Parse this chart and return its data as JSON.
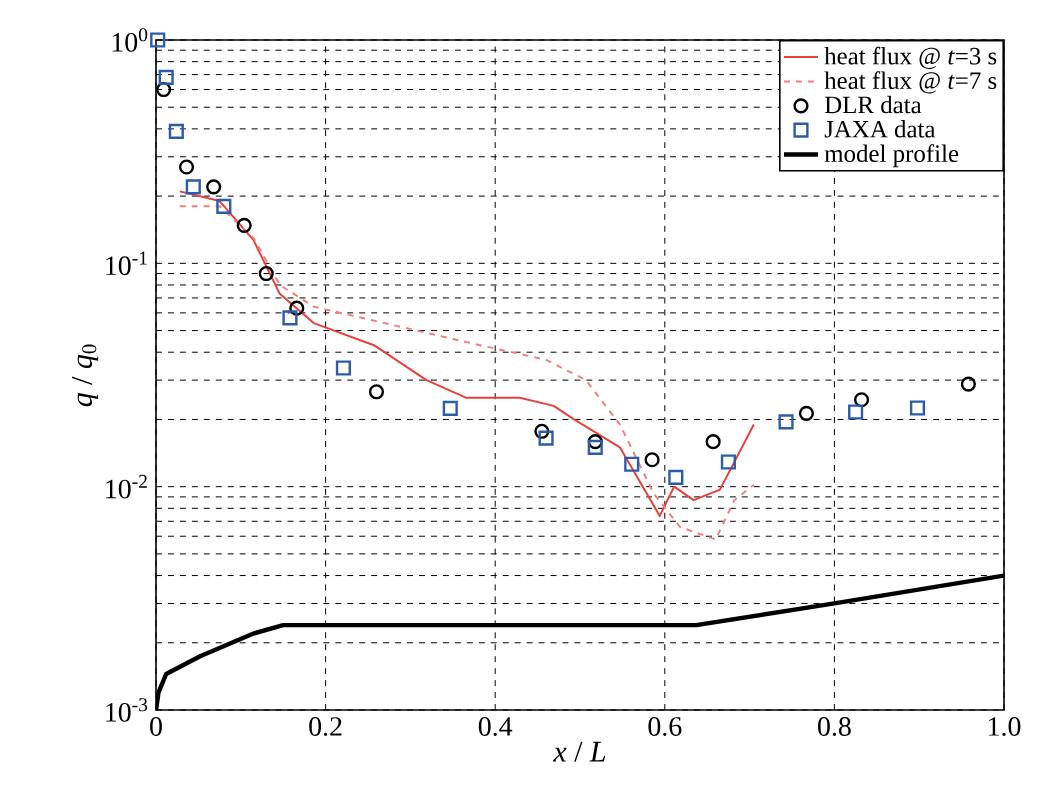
{
  "chart_data": {
    "type": "line",
    "xlabel": "*x* / *L*",
    "ylabel": "*q* / *q*$_{0}$",
    "xlim": [
      0,
      1
    ],
    "ylim": [
      0.001,
      1
    ],
    "log": "y",
    "grid": true,
    "legend": "top right",
    "xticks": [
      0,
      0.2,
      0.4,
      0.6,
      0.8,
      {
        "value": 1,
        "label": "1.0"
      }
    ],
    "yticks": [
      {
        "value": 0.001,
        "label": "10$^{-3}$"
      },
      {
        "value": 0.01,
        "label": "10$^{-2}$"
      },
      {
        "value": 0.1,
        "label": "10$^{-1}$"
      },
      {
        "value": 1,
        "label": "10$^{0}$"
      }
    ],
    "series": [
      {
        "name": "heat flux @ *t*=3 s",
        "line_style": "solid",
        "marker": "none",
        "color": "#e8413c",
        "x": [
          0.028,
          0.075,
          0.115,
          0.146,
          0.186,
          0.257,
          0.319,
          0.366,
          0.429,
          0.469,
          0.493,
          0.547,
          0.594,
          0.611,
          0.634,
          0.665,
          0.705
        ],
        "values": [
          0.21,
          0.19,
          0.127,
          0.073,
          0.054,
          0.043,
          0.03,
          0.025,
          0.025,
          0.023,
          0.02,
          0.015,
          0.0074,
          0.01,
          0.0087,
          0.0097,
          0.019
        ]
      },
      {
        "name": "heat flux @ *t*=7 s",
        "line_style": "dashed",
        "marker": "none",
        "color": "#f08080",
        "x": [
          0.028,
          0.075,
          0.115,
          0.146,
          0.186,
          0.288,
          0.382,
          0.46,
          0.507,
          0.547,
          0.587,
          0.618,
          0.66,
          0.682,
          0.705
        ],
        "values": [
          0.18,
          0.18,
          0.13,
          0.08,
          0.064,
          0.052,
          0.043,
          0.037,
          0.03,
          0.019,
          0.0093,
          0.0066,
          0.0058,
          0.0087,
          0.0102
        ]
      },
      {
        "name": "DLR data",
        "type": "scatter",
        "marker": "circle",
        "color": "#000000",
        "x": [
          0.009,
          0.036,
          0.068,
          0.104,
          0.13,
          0.166,
          0.26,
          0.455,
          0.518,
          0.585,
          0.657,
          0.767,
          0.832,
          0.958
        ],
        "values": [
          0.6,
          0.27,
          0.22,
          0.148,
          0.09,
          0.063,
          0.0266,
          0.0177,
          0.0159,
          0.0132,
          0.0159,
          0.0213,
          0.0245,
          0.0288
        ]
      },
      {
        "name": "JAXA data",
        "type": "scatter",
        "marker": "square",
        "color": "#2a5caa",
        "x": [
          0.002,
          0.012,
          0.024,
          0.044,
          0.08,
          0.158,
          0.221,
          0.347,
          0.46,
          0.518,
          0.561,
          0.613,
          0.675,
          0.743,
          0.825,
          0.898
        ],
        "values": [
          1.0,
          0.68,
          0.39,
          0.22,
          0.18,
          0.057,
          0.034,
          0.0224,
          0.0165,
          0.015,
          0.0126,
          0.011,
          0.0129,
          0.0195,
          0.0216,
          0.0225
        ]
      },
      {
        "name": "model profile",
        "line_style": "solid",
        "marker": "none",
        "color": "#000000",
        "x": [
          0.0,
          0.003,
          0.012,
          0.052,
          0.115,
          0.15,
          0.637,
          0.8,
          1.0
        ],
        "values": [
          0.001,
          0.0012,
          0.00145,
          0.00174,
          0.0022,
          0.0024,
          0.0024,
          0.003,
          0.004
        ]
      }
    ]
  }
}
